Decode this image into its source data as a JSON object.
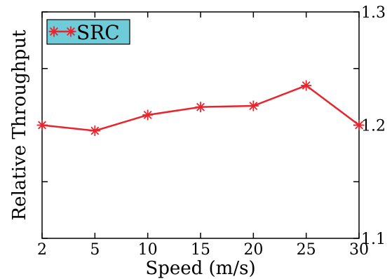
{
  "chart_data": {
    "type": "line",
    "title": "",
    "xlabel": "Speed (m/s)",
    "ylabel": "Relative Throughput",
    "x": [
      2,
      5,
      10,
      15,
      20,
      25,
      30
    ],
    "x_tick_labels": [
      "2",
      "5",
      "10",
      "15",
      "20",
      "25",
      "30"
    ],
    "ylim": [
      1.1,
      1.3
    ],
    "y_ticks": [
      1.1,
      1.15,
      1.2,
      1.25,
      1.3
    ],
    "y_tick_labels": [
      "1.1",
      "1.2",
      "1.3"
    ],
    "y_tick_labels_position": "right",
    "grid": false,
    "legend": {
      "position": "top-left",
      "background": "#6ecbd8"
    },
    "series": [
      {
        "name": "SRC",
        "color": "#e8242c",
        "marker": "asterisk",
        "values": [
          1.2,
          1.195,
          1.209,
          1.216,
          1.217,
          1.235,
          1.2
        ]
      }
    ]
  }
}
